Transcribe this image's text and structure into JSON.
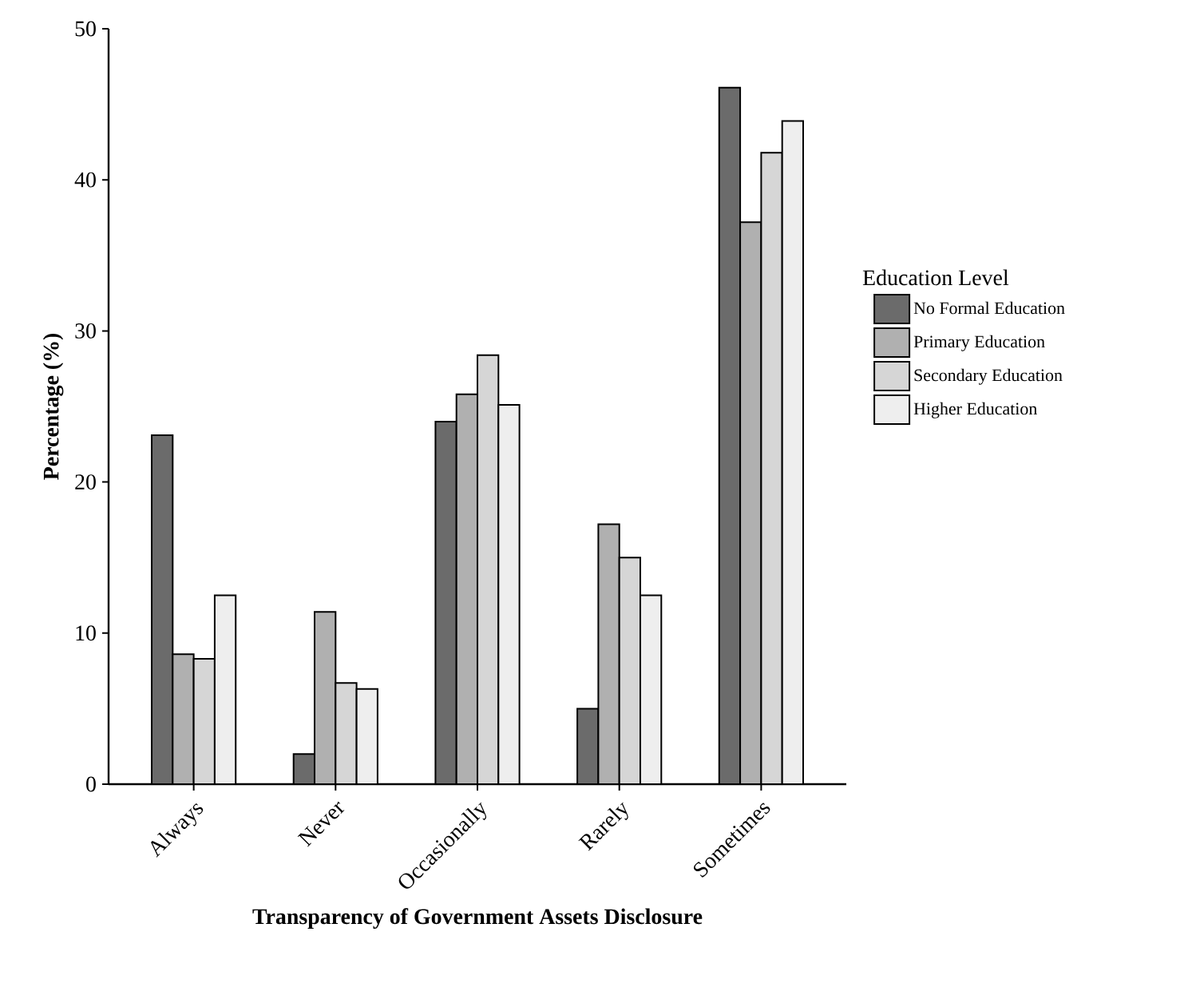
{
  "chart_data": {
    "type": "bar",
    "xlabel": "Transparency of Government Assets Disclosure",
    "ylabel": "Percentage (%)",
    "legend_title": "Education Level",
    "categories": [
      "Always",
      "Never",
      "Occasionally",
      "Rarely",
      "Sometimes"
    ],
    "series": [
      {
        "name": "No Formal Education",
        "color": "#6b6b6b",
        "values": [
          23.1,
          2.0,
          24.0,
          5.0,
          46.1
        ]
      },
      {
        "name": "Primary Education",
        "color": "#b0b0b0",
        "values": [
          8.6,
          11.4,
          25.8,
          17.2,
          37.2
        ]
      },
      {
        "name": "Secondary Education",
        "color": "#d6d6d6",
        "values": [
          8.3,
          6.7,
          28.4,
          15.0,
          41.8
        ]
      },
      {
        "name": "Higher Education",
        "color": "#eeeeee",
        "values": [
          12.5,
          6.3,
          25.1,
          12.5,
          43.9
        ]
      }
    ],
    "ylim": [
      0,
      50
    ],
    "yticks": [
      0,
      10,
      20,
      30,
      40,
      50
    ],
    "grid": false,
    "legend": "right"
  }
}
